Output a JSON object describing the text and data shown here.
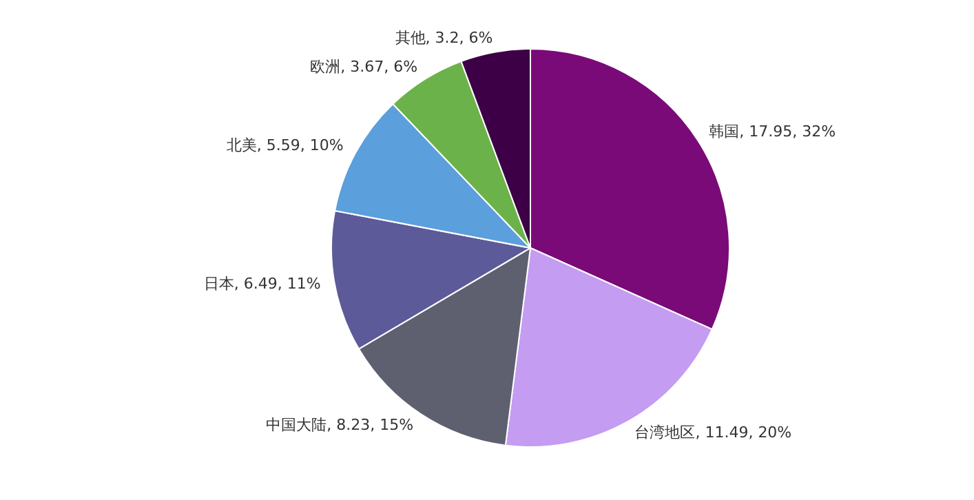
{
  "chart_data": {
    "type": "pie",
    "categories": [
      "韩国",
      "台湾地区",
      "中国大陆",
      "日本",
      "北美",
      "欧洲",
      "其他"
    ],
    "values": [
      17.95,
      11.49,
      8.23,
      6.49,
      5.59,
      3.67,
      3.2
    ],
    "value_labels": [
      "17.95, 32%",
      "11.49, 20%",
      "8.23, 15%",
      "6.49, 11%",
      "5.59, 10%",
      "3.67, 6%",
      "3.2, 6%"
    ],
    "colors": [
      "#7a0a78",
      "#c49cf2",
      "#5e6070",
      "#5c5a99",
      "#5b9fdc",
      "#6cb24a",
      "#3d0046"
    ],
    "legend": false
  }
}
